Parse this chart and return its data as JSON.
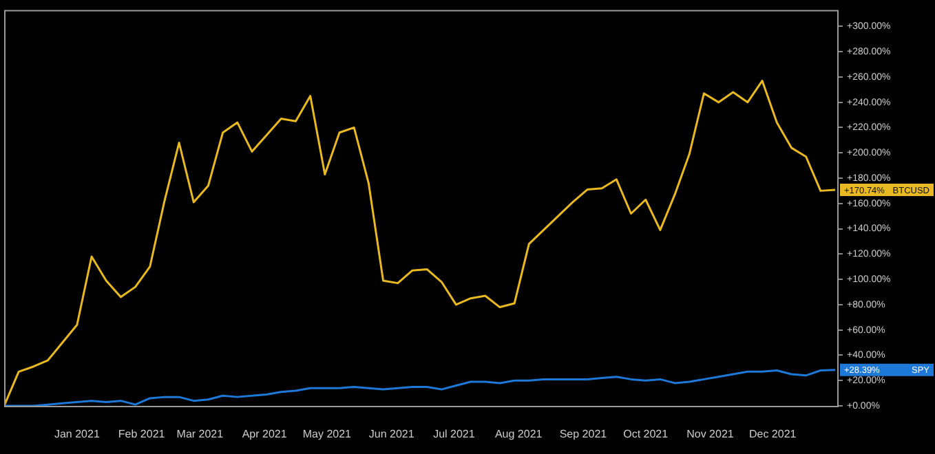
{
  "chart_data": {
    "type": "line",
    "x": [
      "2020-11-27",
      "2020-12-04",
      "2020-12-11",
      "2020-12-18",
      "2020-12-25",
      "2021-01-01",
      "2021-01-08",
      "2021-01-15",
      "2021-01-22",
      "2021-01-29",
      "2021-02-05",
      "2021-02-12",
      "2021-02-19",
      "2021-02-26",
      "2021-03-05",
      "2021-03-12",
      "2021-03-19",
      "2021-03-26",
      "2021-04-02",
      "2021-04-09",
      "2021-04-16",
      "2021-04-23",
      "2021-04-30",
      "2021-05-07",
      "2021-05-14",
      "2021-05-21",
      "2021-05-28",
      "2021-06-04",
      "2021-06-11",
      "2021-06-18",
      "2021-06-25",
      "2021-07-02",
      "2021-07-09",
      "2021-07-16",
      "2021-07-23",
      "2021-07-30",
      "2021-08-06",
      "2021-08-13",
      "2021-08-20",
      "2021-08-27",
      "2021-09-03",
      "2021-09-10",
      "2021-09-17",
      "2021-09-24",
      "2021-10-01",
      "2021-10-08",
      "2021-10-15",
      "2021-10-22",
      "2021-10-29",
      "2021-11-05",
      "2021-11-12",
      "2021-11-19",
      "2021-11-26",
      "2021-12-03",
      "2021-12-10",
      "2021-12-17",
      "2021-12-24",
      "2021-12-31"
    ],
    "series": [
      {
        "name": "BTCUSD",
        "color": "#e8b923",
        "values": [
          0,
          27,
          31,
          36,
          50,
          64,
          118,
          99,
          86,
          94,
          110,
          162,
          208,
          161,
          174,
          216,
          224,
          201,
          214,
          227,
          225,
          245,
          183,
          216,
          220,
          176,
          99,
          97,
          107,
          108,
          98,
          80,
          85,
          87,
          78,
          81,
          128,
          139,
          150,
          161,
          171,
          172,
          179,
          152,
          163,
          139,
          167,
          199,
          247,
          240,
          248,
          240,
          257,
          224,
          204,
          197,
          170,
          170.74
        ],
        "value_labels": [
          null,
          null,
          null,
          null,
          null,
          null,
          null,
          null,
          null,
          null,
          null,
          null,
          null,
          null,
          null,
          null,
          null,
          null,
          null,
          null,
          null,
          null,
          null,
          null,
          null,
          null,
          null,
          null,
          null,
          null,
          null,
          null,
          null,
          null,
          null,
          null,
          null,
          null,
          null,
          null,
          null,
          null,
          null,
          null,
          null,
          null,
          null,
          null,
          null,
          null,
          null,
          null,
          null,
          null,
          null,
          null,
          null,
          "+170.74%"
        ]
      },
      {
        "name": "SPY",
        "color": "#1e78d8",
        "values": [
          0,
          0,
          0,
          1,
          2,
          3,
          4,
          3,
          4,
          1,
          6,
          7,
          7,
          4,
          5,
          8,
          7,
          8,
          9,
          11,
          12,
          14,
          14,
          14,
          15,
          14,
          13,
          14,
          15,
          15,
          13,
          16,
          19,
          19,
          18,
          20,
          20,
          21,
          21,
          21,
          21,
          22,
          23,
          21,
          20,
          21,
          18,
          19,
          21,
          23,
          25,
          27,
          27,
          28,
          25,
          24,
          28,
          28.39
        ],
        "value_labels": [
          null,
          null,
          null,
          null,
          null,
          null,
          null,
          null,
          null,
          null,
          null,
          null,
          null,
          null,
          null,
          null,
          null,
          null,
          null,
          null,
          null,
          null,
          null,
          null,
          null,
          null,
          null,
          null,
          null,
          null,
          null,
          null,
          null,
          null,
          null,
          null,
          null,
          null,
          null,
          null,
          null,
          null,
          null,
          null,
          null,
          null,
          null,
          null,
          null,
          null,
          null,
          null,
          null,
          null,
          null,
          null,
          null,
          "+28.39%"
        ]
      }
    ],
    "xlim": [
      "2020-11-27",
      "2022-01-01"
    ],
    "xticks": [
      {
        "value": "2021-01-01",
        "label": "Jan 2021"
      },
      {
        "value": "2021-02-01",
        "label": "Feb 2021"
      },
      {
        "value": "2021-03-01",
        "label": "Mar 2021"
      },
      {
        "value": "2021-04-01",
        "label": "Apr 2021"
      },
      {
        "value": "2021-05-01",
        "label": "May 2021"
      },
      {
        "value": "2021-06-01",
        "label": "Jun 2021"
      },
      {
        "value": "2021-07-01",
        "label": "Jul 2021"
      },
      {
        "value": "2021-08-01",
        "label": "Aug 2021"
      },
      {
        "value": "2021-09-01",
        "label": "Sep 2021"
      },
      {
        "value": "2021-10-01",
        "label": "Oct 2021"
      },
      {
        "value": "2021-11-01",
        "label": "Nov 2021"
      },
      {
        "value": "2021-12-01",
        "label": "Dec 2021"
      }
    ],
    "ylim": [
      0,
      313
    ],
    "yticks": [
      {
        "value": 0,
        "label": "+0.00%"
      },
      {
        "value": 20,
        "label": "+20.00%"
      },
      {
        "value": 40,
        "label": "+40.00%"
      },
      {
        "value": 60,
        "label": "+60.00%"
      },
      {
        "value": 80,
        "label": "+80.00%"
      },
      {
        "value": 100,
        "label": "+100.00%"
      },
      {
        "value": 120,
        "label": "+120.00%"
      },
      {
        "value": 140,
        "label": "+140.00%"
      },
      {
        "value": 160,
        "label": "+160.00%"
      },
      {
        "value": 180,
        "label": "+180.00%"
      },
      {
        "value": 200,
        "label": "+200.00%"
      },
      {
        "value": 220,
        "label": "+220.00%"
      },
      {
        "value": 240,
        "label": "+240.00%"
      },
      {
        "value": 260,
        "label": "+260.00%"
      },
      {
        "value": 280,
        "label": "+280.00%"
      },
      {
        "value": 300,
        "label": "+300.00%"
      }
    ],
    "grid": false,
    "legend": false,
    "marker": "none",
    "line_style": "solid"
  }
}
